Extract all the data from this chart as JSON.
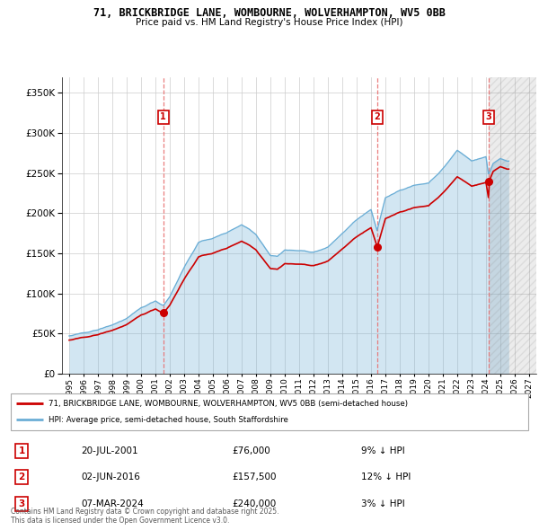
{
  "title": "71, BRICKBRIDGE LANE, WOMBOURNE, WOLVERHAMPTON, WV5 0BB",
  "subtitle": "Price paid vs. HM Land Registry's House Price Index (HPI)",
  "legend_line1": "71, BRICKBRIDGE LANE, WOMBOURNE, WOLVERHAMPTON, WV5 0BB (semi-detached house)",
  "legend_line2": "HPI: Average price, semi-detached house, South Staffordshire",
  "footer": "Contains HM Land Registry data © Crown copyright and database right 2025.\nThis data is licensed under the Open Government Licence v3.0.",
  "sales": [
    {
      "num": 1,
      "date": "20-JUL-2001",
      "price": 76000,
      "pct": "9% ↓ HPI",
      "x_year": 2001.55
    },
    {
      "num": 2,
      "date": "02-JUN-2016",
      "price": 157500,
      "pct": "12% ↓ HPI",
      "x_year": 2016.42
    },
    {
      "num": 3,
      "date": "07-MAR-2024",
      "price": 240000,
      "pct": "3% ↓ HPI",
      "x_year": 2024.18
    }
  ],
  "hpi_color": "#6baed6",
  "price_color": "#cc0000",
  "sale_marker_color": "#cc0000",
  "vline_color": "#e87070",
  "background_color": "#ffffff",
  "plot_bg_color": "#ffffff",
  "grid_color": "#cccccc",
  "ylim": [
    0,
    370000
  ],
  "xlim": [
    1994.5,
    2027.5
  ],
  "yticks": [
    0,
    50000,
    100000,
    150000,
    200000,
    250000,
    300000,
    350000
  ],
  "xticks": [
    1995,
    1996,
    1997,
    1998,
    1999,
    2000,
    2001,
    2002,
    2003,
    2004,
    2005,
    2006,
    2007,
    2008,
    2009,
    2010,
    2011,
    2012,
    2013,
    2014,
    2015,
    2016,
    2017,
    2018,
    2019,
    2020,
    2021,
    2022,
    2023,
    2024,
    2025,
    2026,
    2027
  ]
}
